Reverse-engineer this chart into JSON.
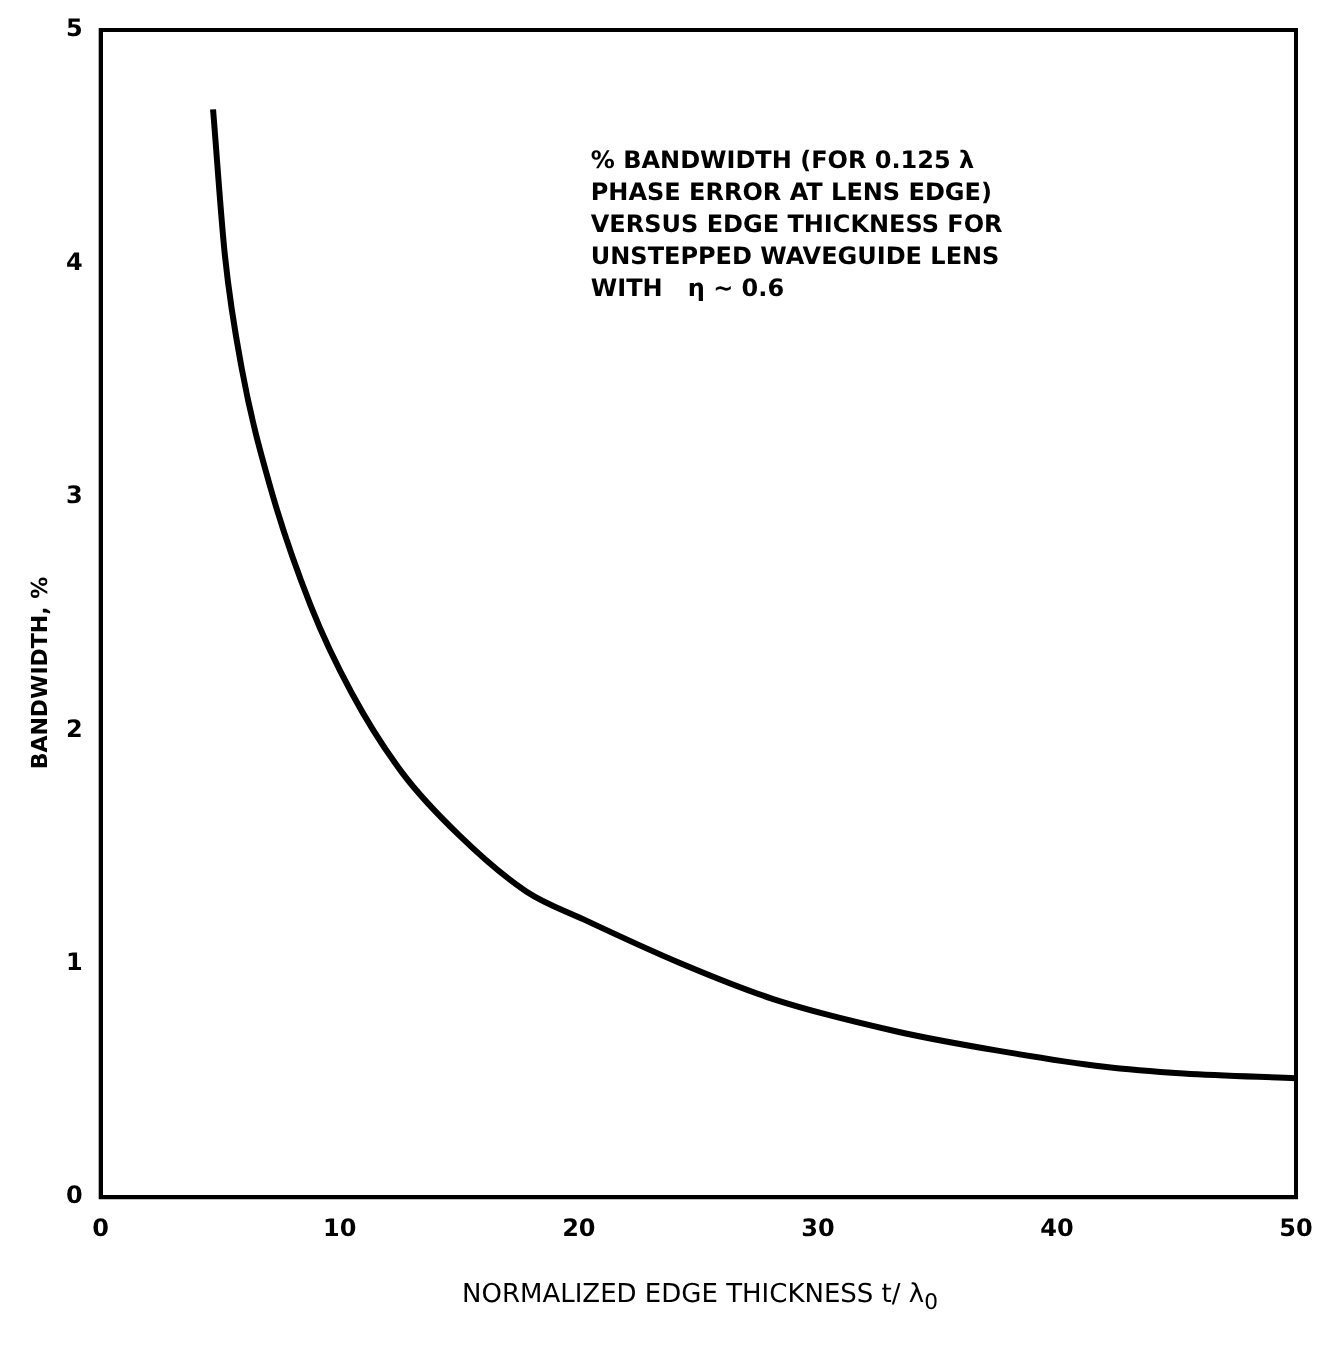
{
  "chart_data": {
    "type": "line",
    "xlabel": "NORMALIZED EDGE THICKNESS t/ λ$_{0}$",
    "ylabel": "BANDWIDTH, %",
    "annotations": [
      "% BANDWIDTH (FOR 0.125 λ\nPHASE ERROR AT LENS EDGE)\nVERSUS EDGE THICKNESS FOR\nUNSTEPPED WAVEGUIDE LENS\nWITH   η ~ 0.6"
    ],
    "x": [
      4.7,
      5.2,
      5.9,
      7.1,
      8.8,
      10.5,
      12.6,
      15.0,
      17.8,
      20.2,
      24.3,
      28.1,
      33.3,
      37.4,
      41.9,
      45.3,
      50
    ],
    "series": [
      {
        "color": "#000000",
        "values": [
          4.66,
          4.03,
          3.55,
          3.04,
          2.53,
          2.16,
          1.82,
          1.55,
          1.31,
          1.19,
          1.0,
          0.85,
          0.71,
          0.63,
          0.56,
          0.53,
          0.51
        ]
      }
    ],
    "xlim": [
      0,
      50
    ],
    "xticks": [
      0,
      10,
      20,
      30,
      40,
      50
    ],
    "ylim": [
      0,
      5
    ],
    "yticks": [
      0,
      1,
      2,
      3,
      4,
      5
    ],
    "marker": "none"
  }
}
